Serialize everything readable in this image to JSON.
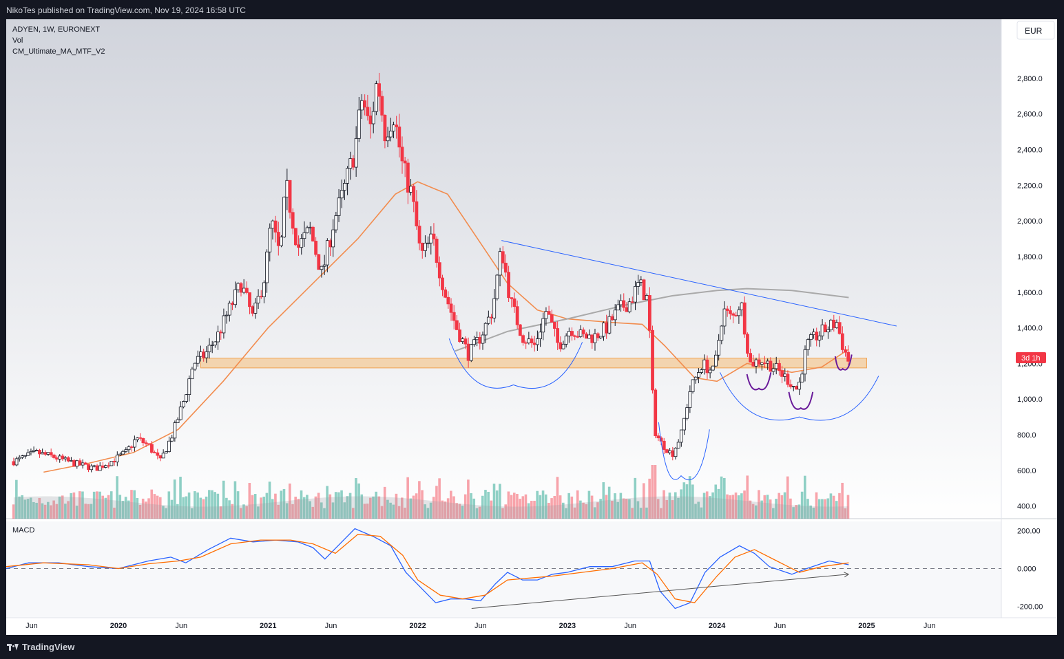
{
  "header": {
    "published": "NikoTes published on TradingView.com, Nov 19, 2024 16:58 UTC"
  },
  "legend": {
    "line1": "ADYEN, 1W, EURONEXT",
    "line2": "Vol",
    "line3": "CM_Ultimate_MA_MTF_V2"
  },
  "currency_button": "EUR",
  "price_badge": "3d 1h",
  "macd_label": "MACD",
  "footer": {
    "brand": "TradingView"
  },
  "colors": {
    "up": "#089981",
    "down": "#f23645",
    "ma": "#f28c4e",
    "ma_long": "#a9a9a9",
    "macd": "#2962ff",
    "signal": "#ff6d00",
    "trendline": "#2962ff",
    "zone": "#f5c48a",
    "arc_inner": "#6a1b9a"
  },
  "chart_data": [
    {
      "type": "candlestick",
      "symbol": "ADYEN",
      "interval": "1W",
      "exchange": "EURONEXT",
      "currency": "EUR",
      "y_ticks": [
        "2,800.0",
        "2,600.0",
        "2,400.0",
        "2,200.0",
        "2,000.0",
        "1,800.0",
        "1,600.0",
        "1,400.0",
        "1,200.0",
        "1,000.0",
        "800.0",
        "600.0",
        "400.0"
      ],
      "y_range": [
        360,
        2900
      ],
      "x_ticks": [
        "Jun",
        "2020",
        "Jun",
        "2021",
        "Jun",
        "2022",
        "Jun",
        "2023",
        "Jun",
        "2024",
        "Jun",
        "2025",
        "Jun"
      ],
      "x_range": [
        2019.25,
        2025.9
      ],
      "price_path": [
        [
          2019.3,
          650
        ],
        [
          2019.45,
          700
        ],
        [
          2019.55,
          680
        ],
        [
          2019.7,
          640
        ],
        [
          2019.85,
          610
        ],
        [
          2019.95,
          650
        ],
        [
          2020.05,
          700
        ],
        [
          2020.12,
          780
        ],
        [
          2020.2,
          740
        ],
        [
          2020.28,
          650
        ],
        [
          2020.36,
          800
        ],
        [
          2020.44,
          1000
        ],
        [
          2020.5,
          1200
        ],
        [
          2020.58,
          1250
        ],
        [
          2020.66,
          1350
        ],
        [
          2020.74,
          1500
        ],
        [
          2020.82,
          1650
        ],
        [
          2020.9,
          1450
        ],
        [
          2020.98,
          1700
        ],
        [
          2021.02,
          2000
        ],
        [
          2021.08,
          1800
        ],
        [
          2021.12,
          2200
        ],
        [
          2021.2,
          1850
        ],
        [
          2021.28,
          1950
        ],
        [
          2021.36,
          1700
        ],
        [
          2021.44,
          2000
        ],
        [
          2021.5,
          2150
        ],
        [
          2021.58,
          2400
        ],
        [
          2021.63,
          2700
        ],
        [
          2021.68,
          2500
        ],
        [
          2021.73,
          2800
        ],
        [
          2021.78,
          2500
        ],
        [
          2021.84,
          2600
        ],
        [
          2021.9,
          2300
        ],
        [
          2021.96,
          2150
        ],
        [
          2022.02,
          1800
        ],
        [
          2022.1,
          1900
        ],
        [
          2022.18,
          1600
        ],
        [
          2022.26,
          1400
        ],
        [
          2022.34,
          1250
        ],
        [
          2022.42,
          1350
        ],
        [
          2022.5,
          1500
        ],
        [
          2022.56,
          1850
        ],
        [
          2022.62,
          1550
        ],
        [
          2022.7,
          1350
        ],
        [
          2022.78,
          1300
        ],
        [
          2022.86,
          1500
        ],
        [
          2022.94,
          1300
        ],
        [
          2023.02,
          1400
        ],
        [
          2023.1,
          1350
        ],
        [
          2023.18,
          1350
        ],
        [
          2023.26,
          1400
        ],
        [
          2023.34,
          1500
        ],
        [
          2023.42,
          1550
        ],
        [
          2023.48,
          1650
        ],
        [
          2023.54,
          1550
        ],
        [
          2023.58,
          830
        ],
        [
          2023.62,
          760
        ],
        [
          2023.7,
          690
        ],
        [
          2023.76,
          800
        ],
        [
          2023.82,
          1050
        ],
        [
          2023.9,
          1200
        ],
        [
          2023.98,
          1150
        ],
        [
          2024.04,
          1500
        ],
        [
          2024.1,
          1450
        ],
        [
          2024.16,
          1550
        ],
        [
          2024.22,
          1200
        ],
        [
          2024.3,
          1220
        ],
        [
          2024.38,
          1180
        ],
        [
          2024.46,
          1120
        ],
        [
          2024.54,
          1050
        ],
        [
          2024.6,
          1300
        ],
        [
          2024.66,
          1350
        ],
        [
          2024.74,
          1400
        ],
        [
          2024.8,
          1430
        ],
        [
          2024.84,
          1300
        ],
        [
          2024.88,
          1210
        ]
      ],
      "ma_path": [
        [
          2019.5,
          590
        ],
        [
          2019.8,
          640
        ],
        [
          2020.1,
          700
        ],
        [
          2020.4,
          830
        ],
        [
          2020.7,
          1100
        ],
        [
          2021.0,
          1400
        ],
        [
          2021.3,
          1650
        ],
        [
          2021.6,
          1900
        ],
        [
          2021.85,
          2150
        ],
        [
          2022.0,
          2220
        ],
        [
          2022.2,
          2150
        ],
        [
          2022.4,
          1900
        ],
        [
          2022.6,
          1650
        ],
        [
          2022.8,
          1500
        ],
        [
          2023.0,
          1450
        ],
        [
          2023.3,
          1430
        ],
        [
          2023.5,
          1420
        ],
        [
          2023.65,
          1300
        ],
        [
          2023.85,
          1120
        ],
        [
          2024.0,
          1100
        ],
        [
          2024.2,
          1200
        ],
        [
          2024.5,
          1150
        ],
        [
          2024.7,
          1180
        ],
        [
          2024.88,
          1280
        ]
      ],
      "ma_long_path": [
        [
          2022.25,
          1270
        ],
        [
          2022.6,
          1380
        ],
        [
          2023.0,
          1450
        ],
        [
          2023.4,
          1530
        ],
        [
          2023.7,
          1580
        ],
        [
          2024.0,
          1610
        ],
        [
          2024.2,
          1620
        ],
        [
          2024.5,
          1610
        ],
        [
          2024.88,
          1570
        ]
      ],
      "annotations": {
        "trendline": [
          [
            2022.56,
            1890
          ],
          [
            2025.2,
            1410
          ]
        ],
        "support_zone": [
          1175,
          1230
        ],
        "arc_2022": {
          "start": [
            2022.21,
            1340
          ],
          "bottom": [
            2022.64,
            1080
          ],
          "end": [
            2023.1,
            1320
          ]
        },
        "arc_2023": {
          "start": [
            2023.61,
            870
          ],
          "bottom": [
            2023.76,
            570
          ],
          "end": [
            2023.95,
            830
          ]
        },
        "arc_2024_large": {
          "start": [
            2024.02,
            1150
          ],
          "bottom": [
            2024.55,
            900
          ],
          "end": [
            2025.08,
            1130
          ]
        },
        "inner_arc_1": {
          "start": [
            2024.2,
            1140
          ],
          "bottom": [
            2024.28,
            1060
          ],
          "end": [
            2024.36,
            1150
          ]
        },
        "inner_arc_2": {
          "start": [
            2024.48,
            1040
          ],
          "bottom": [
            2024.56,
            950
          ],
          "end": [
            2024.64,
            1040
          ]
        },
        "inner_arc_3": {
          "start": [
            2024.79,
            1240
          ],
          "bottom": [
            2024.84,
            1170
          ],
          "end": [
            2024.9,
            1250
          ]
        }
      }
    },
    {
      "type": "line",
      "title": "MACD",
      "y_ticks": [
        "200.00",
        "0.000",
        "-200.00"
      ],
      "y_range": [
        -230,
        230
      ],
      "series": [
        {
          "name": "MACD",
          "x_y": [
            [
              2019.25,
              0
            ],
            [
              2019.4,
              30
            ],
            [
              2019.6,
              30
            ],
            [
              2019.8,
              10
            ],
            [
              2020.0,
              0
            ],
            [
              2020.2,
              40
            ],
            [
              2020.35,
              60
            ],
            [
              2020.45,
              30
            ],
            [
              2020.6,
              100
            ],
            [
              2020.75,
              160
            ],
            [
              2020.9,
              140
            ],
            [
              2021.05,
              150
            ],
            [
              2021.2,
              140
            ],
            [
              2021.3,
              110
            ],
            [
              2021.38,
              50
            ],
            [
              2021.48,
              130
            ],
            [
              2021.58,
              210
            ],
            [
              2021.7,
              170
            ],
            [
              2021.82,
              120
            ],
            [
              2021.92,
              -20
            ],
            [
              2022.02,
              -100
            ],
            [
              2022.12,
              -180
            ],
            [
              2022.22,
              -160
            ],
            [
              2022.32,
              -160
            ],
            [
              2022.42,
              -170
            ],
            [
              2022.52,
              -80
            ],
            [
              2022.6,
              -20
            ],
            [
              2022.7,
              -60
            ],
            [
              2022.8,
              -60
            ],
            [
              2022.9,
              -30
            ],
            [
              2023.0,
              -20
            ],
            [
              2023.15,
              10
            ],
            [
              2023.3,
              10
            ],
            [
              2023.45,
              40
            ],
            [
              2023.55,
              40
            ],
            [
              2023.62,
              -120
            ],
            [
              2023.72,
              -210
            ],
            [
              2023.82,
              -180
            ],
            [
              2023.92,
              -20
            ],
            [
              2024.02,
              60
            ],
            [
              2024.15,
              120
            ],
            [
              2024.25,
              80
            ],
            [
              2024.35,
              10
            ],
            [
              2024.5,
              -30
            ],
            [
              2024.6,
              0
            ],
            [
              2024.75,
              40
            ],
            [
              2024.88,
              20
            ]
          ]
        },
        {
          "name": "Signal",
          "x_y": [
            [
              2019.25,
              10
            ],
            [
              2019.5,
              30
            ],
            [
              2019.8,
              20
            ],
            [
              2020.0,
              0
            ],
            [
              2020.2,
              25
            ],
            [
              2020.4,
              40
            ],
            [
              2020.55,
              60
            ],
            [
              2020.75,
              130
            ],
            [
              2020.95,
              150
            ],
            [
              2021.15,
              150
            ],
            [
              2021.3,
              130
            ],
            [
              2021.45,
              80
            ],
            [
              2021.6,
              180
            ],
            [
              2021.75,
              170
            ],
            [
              2021.9,
              70
            ],
            [
              2022.0,
              -60
            ],
            [
              2022.15,
              -140
            ],
            [
              2022.3,
              -160
            ],
            [
              2022.45,
              -140
            ],
            [
              2022.6,
              -60
            ],
            [
              2022.75,
              -50
            ],
            [
              2022.9,
              -40
            ],
            [
              2023.1,
              -20
            ],
            [
              2023.3,
              0
            ],
            [
              2023.5,
              30
            ],
            [
              2023.6,
              -30
            ],
            [
              2023.72,
              -160
            ],
            [
              2023.85,
              -180
            ],
            [
              2024.0,
              -40
            ],
            [
              2024.12,
              60
            ],
            [
              2024.25,
              100
            ],
            [
              2024.4,
              40
            ],
            [
              2024.55,
              -20
            ],
            [
              2024.7,
              10
            ],
            [
              2024.88,
              30
            ]
          ]
        }
      ],
      "annotations": {
        "divergence_line": [
          [
            2022.36,
            -210
          ],
          [
            2024.88,
            -30
          ]
        ]
      }
    }
  ]
}
